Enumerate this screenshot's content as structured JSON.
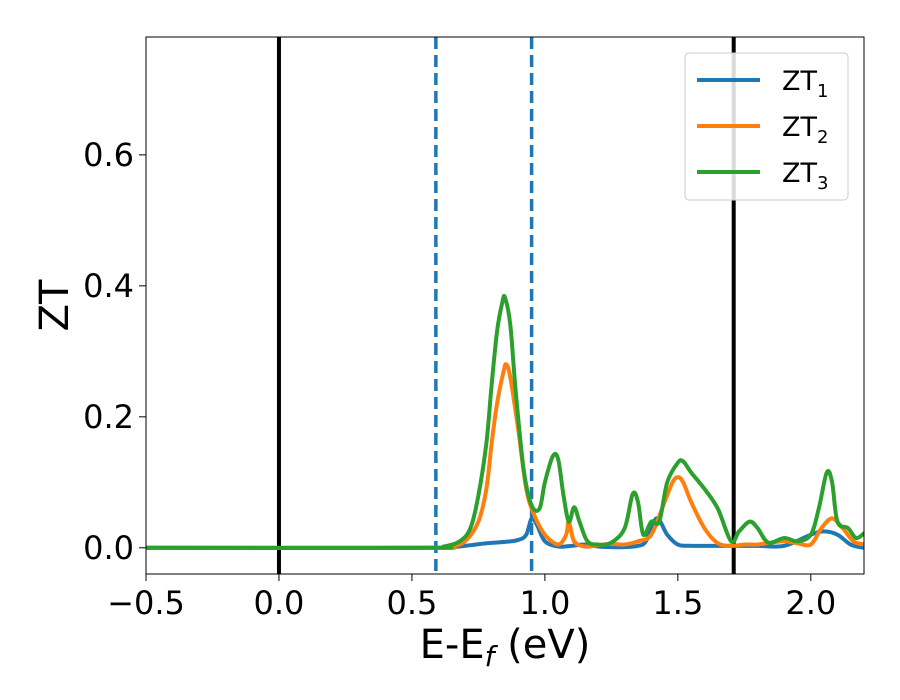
{
  "chart_data": {
    "type": "line",
    "xlabel_main": "E-E",
    "xlabel_sub": "f",
    "xlabel_unit": " (eV)",
    "ylabel": "ZT",
    "xlim": [
      -0.5,
      2.2
    ],
    "ylim": [
      -0.04,
      0.78
    ],
    "x_ticks": [
      -0.5,
      0.0,
      0.5,
      1.0,
      1.5,
      2.0
    ],
    "x_tick_labels": [
      "−0.5",
      "0.0",
      "0.5",
      "1.0",
      "1.5",
      "2.0"
    ],
    "y_ticks": [
      0.0,
      0.2,
      0.4,
      0.6
    ],
    "y_tick_labels": [
      "0.0",
      "0.2",
      "0.4",
      "0.6"
    ],
    "grid": false,
    "legend_position": "top-right",
    "vlines": [
      {
        "x": 0.0,
        "style": "solid",
        "color": "#000000"
      },
      {
        "x": 1.71,
        "style": "solid",
        "color": "#000000"
      },
      {
        "x": 0.59,
        "style": "dashed",
        "color": "#1f77b4"
      },
      {
        "x": 0.95,
        "style": "dashed",
        "color": "#1f77b4"
      }
    ],
    "series": [
      {
        "name": "ZT",
        "name_sub": "1",
        "color": "#1f77b4",
        "points": [
          [
            -0.5,
            0
          ],
          [
            0.55,
            0
          ],
          [
            0.65,
            0.001
          ],
          [
            0.72,
            0.004
          ],
          [
            0.78,
            0.007
          ],
          [
            0.85,
            0.009
          ],
          [
            0.9,
            0.012
          ],
          [
            0.93,
            0.02
          ],
          [
            0.95,
            0.045
          ],
          [
            0.97,
            0.035
          ],
          [
            1.0,
            0.01
          ],
          [
            1.05,
            0.002
          ],
          [
            1.1,
            0.003
          ],
          [
            1.15,
            0.005
          ],
          [
            1.2,
            0.002
          ],
          [
            1.25,
            0.001
          ],
          [
            1.3,
            0.001
          ],
          [
            1.35,
            0.003
          ],
          [
            1.38,
            0.01
          ],
          [
            1.42,
            0.045
          ],
          [
            1.46,
            0.02
          ],
          [
            1.5,
            0.005
          ],
          [
            1.55,
            0.003
          ],
          [
            1.6,
            0.003
          ],
          [
            1.7,
            0.003
          ],
          [
            1.8,
            0.003
          ],
          [
            1.9,
            0.003
          ],
          [
            2.0,
            0.02
          ],
          [
            2.05,
            0.025
          ],
          [
            2.1,
            0.02
          ],
          [
            2.15,
            0.005
          ],
          [
            2.2,
            0
          ]
        ]
      },
      {
        "name": "ZT",
        "name_sub": "2",
        "color": "#ff7f0e",
        "points": [
          [
            -0.5,
            0
          ],
          [
            0.55,
            0
          ],
          [
            0.65,
            0.003
          ],
          [
            0.7,
            0.01
          ],
          [
            0.75,
            0.04
          ],
          [
            0.78,
            0.09
          ],
          [
            0.8,
            0.16
          ],
          [
            0.82,
            0.22
          ],
          [
            0.845,
            0.27
          ],
          [
            0.855,
            0.28
          ],
          [
            0.87,
            0.26
          ],
          [
            0.9,
            0.18
          ],
          [
            0.93,
            0.09
          ],
          [
            0.96,
            0.05
          ],
          [
            1.0,
            0.02
          ],
          [
            1.05,
            0.005
          ],
          [
            1.08,
            0.02
          ],
          [
            1.09,
            0.04
          ],
          [
            1.11,
            0.01
          ],
          [
            1.15,
            0.002
          ],
          [
            1.2,
            0.004
          ],
          [
            1.25,
            0.006
          ],
          [
            1.3,
            0.005
          ],
          [
            1.35,
            0.01
          ],
          [
            1.4,
            0.02
          ],
          [
            1.45,
            0.07
          ],
          [
            1.48,
            0.1
          ],
          [
            1.5,
            0.108
          ],
          [
            1.52,
            0.1
          ],
          [
            1.55,
            0.07
          ],
          [
            1.6,
            0.03
          ],
          [
            1.65,
            0.007
          ],
          [
            1.7,
            0.003
          ],
          [
            1.75,
            0.005
          ],
          [
            1.8,
            0.005
          ],
          [
            1.85,
            0.008
          ],
          [
            1.9,
            0.01
          ],
          [
            1.95,
            0.007
          ],
          [
            2.0,
            0.005
          ],
          [
            2.04,
            0.03
          ],
          [
            2.08,
            0.045
          ],
          [
            2.12,
            0.03
          ],
          [
            2.16,
            0.01
          ],
          [
            2.2,
            0.005
          ]
        ]
      },
      {
        "name": "ZT",
        "name_sub": "3",
        "color": "#2ca02c",
        "points": [
          [
            -0.5,
            0
          ],
          [
            0.55,
            0
          ],
          [
            0.62,
            0.002
          ],
          [
            0.68,
            0.01
          ],
          [
            0.72,
            0.03
          ],
          [
            0.75,
            0.08
          ],
          [
            0.78,
            0.16
          ],
          [
            0.8,
            0.25
          ],
          [
            0.82,
            0.33
          ],
          [
            0.84,
            0.375
          ],
          [
            0.85,
            0.382
          ],
          [
            0.87,
            0.34
          ],
          [
            0.89,
            0.24
          ],
          [
            0.92,
            0.12
          ],
          [
            0.95,
            0.065
          ],
          [
            0.98,
            0.06
          ],
          [
            1.0,
            0.1
          ],
          [
            1.03,
            0.14
          ],
          [
            1.05,
            0.135
          ],
          [
            1.07,
            0.08
          ],
          [
            1.09,
            0.04
          ],
          [
            1.11,
            0.062
          ],
          [
            1.13,
            0.04
          ],
          [
            1.16,
            0.01
          ],
          [
            1.2,
            0.005
          ],
          [
            1.25,
            0.008
          ],
          [
            1.3,
            0.03
          ],
          [
            1.33,
            0.082
          ],
          [
            1.35,
            0.07
          ],
          [
            1.37,
            0.02
          ],
          [
            1.4,
            0.04
          ],
          [
            1.43,
            0.04
          ],
          [
            1.46,
            0.1
          ],
          [
            1.5,
            0.13
          ],
          [
            1.52,
            0.132
          ],
          [
            1.55,
            0.115
          ],
          [
            1.6,
            0.09
          ],
          [
            1.65,
            0.06
          ],
          [
            1.7,
            0.01
          ],
          [
            1.73,
            0.025
          ],
          [
            1.77,
            0.04
          ],
          [
            1.8,
            0.03
          ],
          [
            1.84,
            0.008
          ],
          [
            1.9,
            0.015
          ],
          [
            1.95,
            0.01
          ],
          [
            2.0,
            0.02
          ],
          [
            2.03,
            0.06
          ],
          [
            2.06,
            0.115
          ],
          [
            2.08,
            0.1
          ],
          [
            2.1,
            0.04
          ],
          [
            2.14,
            0.03
          ],
          [
            2.17,
            0.015
          ],
          [
            2.2,
            0.022
          ]
        ]
      }
    ]
  }
}
